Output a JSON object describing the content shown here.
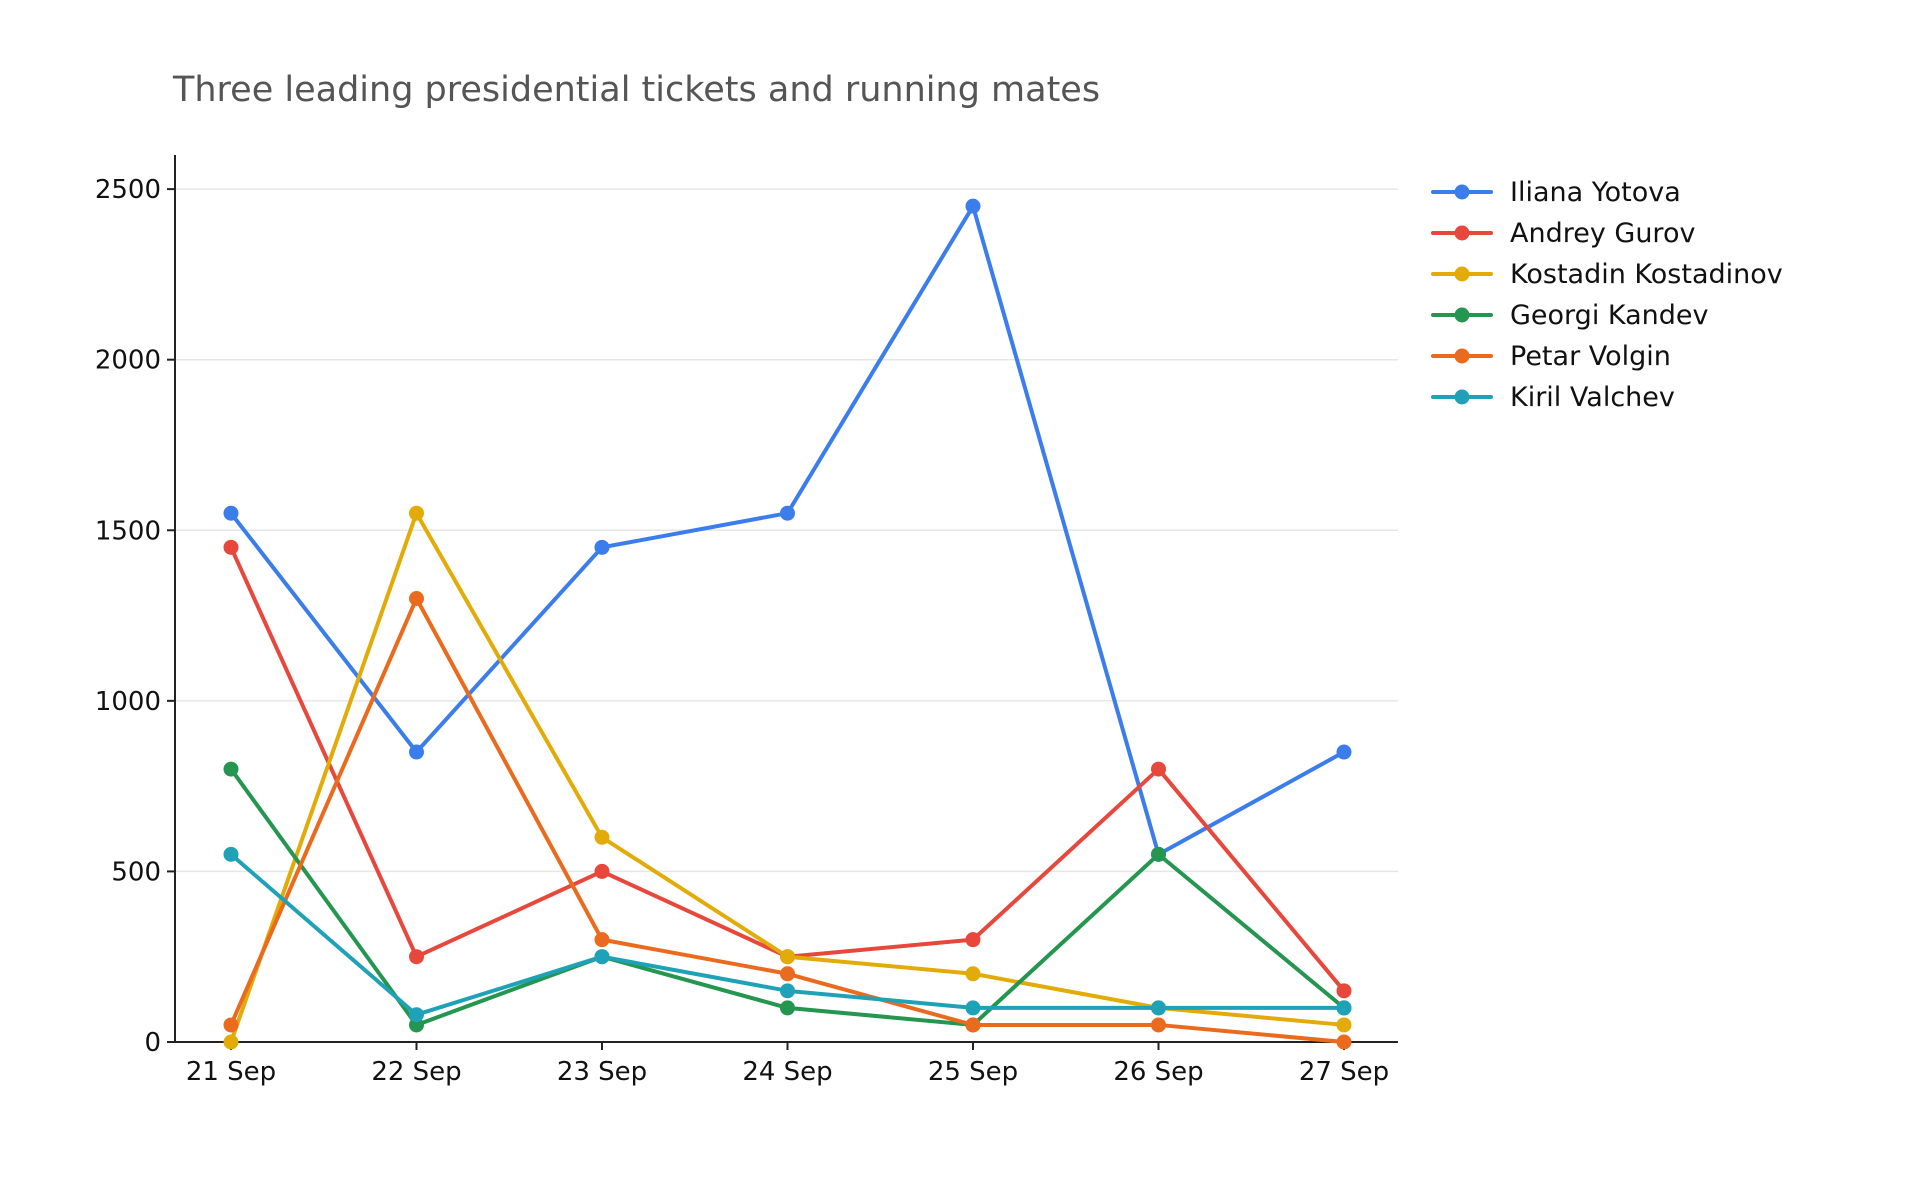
{
  "chart_data": {
    "type": "line",
    "title": "Three leading presidential tickets and running mates",
    "xlabel": "",
    "ylabel": "",
    "categories": [
      "21 Sep",
      "22 Sep",
      "23 Sep",
      "24 Sep",
      "25 Sep",
      "26 Sep",
      "27 Sep"
    ],
    "ylim": [
      0,
      2600
    ],
    "yticks": [
      0,
      500,
      1000,
      1500,
      2000,
      2500
    ],
    "grid": "horizontal",
    "legend": "outside-right",
    "series": [
      {
        "name": "Iliana Yotova",
        "color": "#3b7ded",
        "values": [
          1550,
          850,
          1450,
          1550,
          2450,
          550,
          850
        ]
      },
      {
        "name": "Andrey Gurov",
        "color": "#e8473c",
        "values": [
          1450,
          250,
          500,
          250,
          300,
          800,
          150
        ]
      },
      {
        "name": "Kostadin Kostadinov",
        "color": "#e3ab08",
        "values": [
          0,
          1550,
          600,
          250,
          200,
          100,
          50
        ]
      },
      {
        "name": "Georgi Kandev",
        "color": "#24964f",
        "values": [
          800,
          50,
          250,
          100,
          50,
          550,
          100
        ]
      },
      {
        "name": "Petar Volgin",
        "color": "#ea6a1e",
        "values": [
          50,
          1300,
          300,
          200,
          50,
          50,
          0
        ]
      },
      {
        "name": "Kiril Valchev",
        "color": "#1fa2b8",
        "values": [
          550,
          80,
          250,
          150,
          100,
          100,
          100
        ]
      }
    ]
  }
}
